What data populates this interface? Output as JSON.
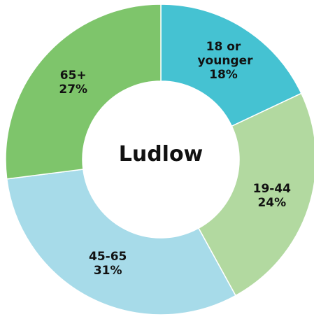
{
  "chart_data": {
    "type": "donut",
    "title": "Ludlow",
    "categories": [
      "18 or younger",
      "19-44",
      "45-65",
      "65+"
    ],
    "values": [
      18,
      24,
      31,
      27
    ],
    "value_labels": [
      "18%",
      "24%",
      "31%",
      "27%"
    ],
    "colors": [
      "#45c2d2",
      "#b2d9a0",
      "#a7dbe9",
      "#7ec56b"
    ]
  }
}
